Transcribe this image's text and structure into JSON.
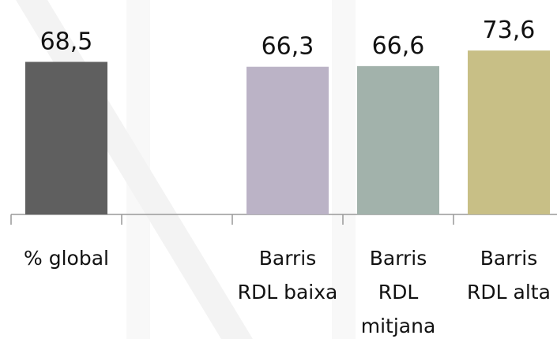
{
  "chart_data": {
    "type": "bar",
    "categories": [
      "% global",
      null,
      "Barris RDL baixa",
      "Barris RDL mitjana",
      "Barris RDL alta"
    ],
    "values": [
      68.5,
      null,
      66.3,
      66.6,
      73.6
    ],
    "value_labels": [
      "68,5",
      null,
      "66,3",
      "66,6",
      "73,6"
    ],
    "colors": [
      "#5f5f5f",
      null,
      "#bbb3c6",
      "#a2b2ab",
      "#c8bf86"
    ],
    "ylim": [
      0,
      80
    ]
  }
}
